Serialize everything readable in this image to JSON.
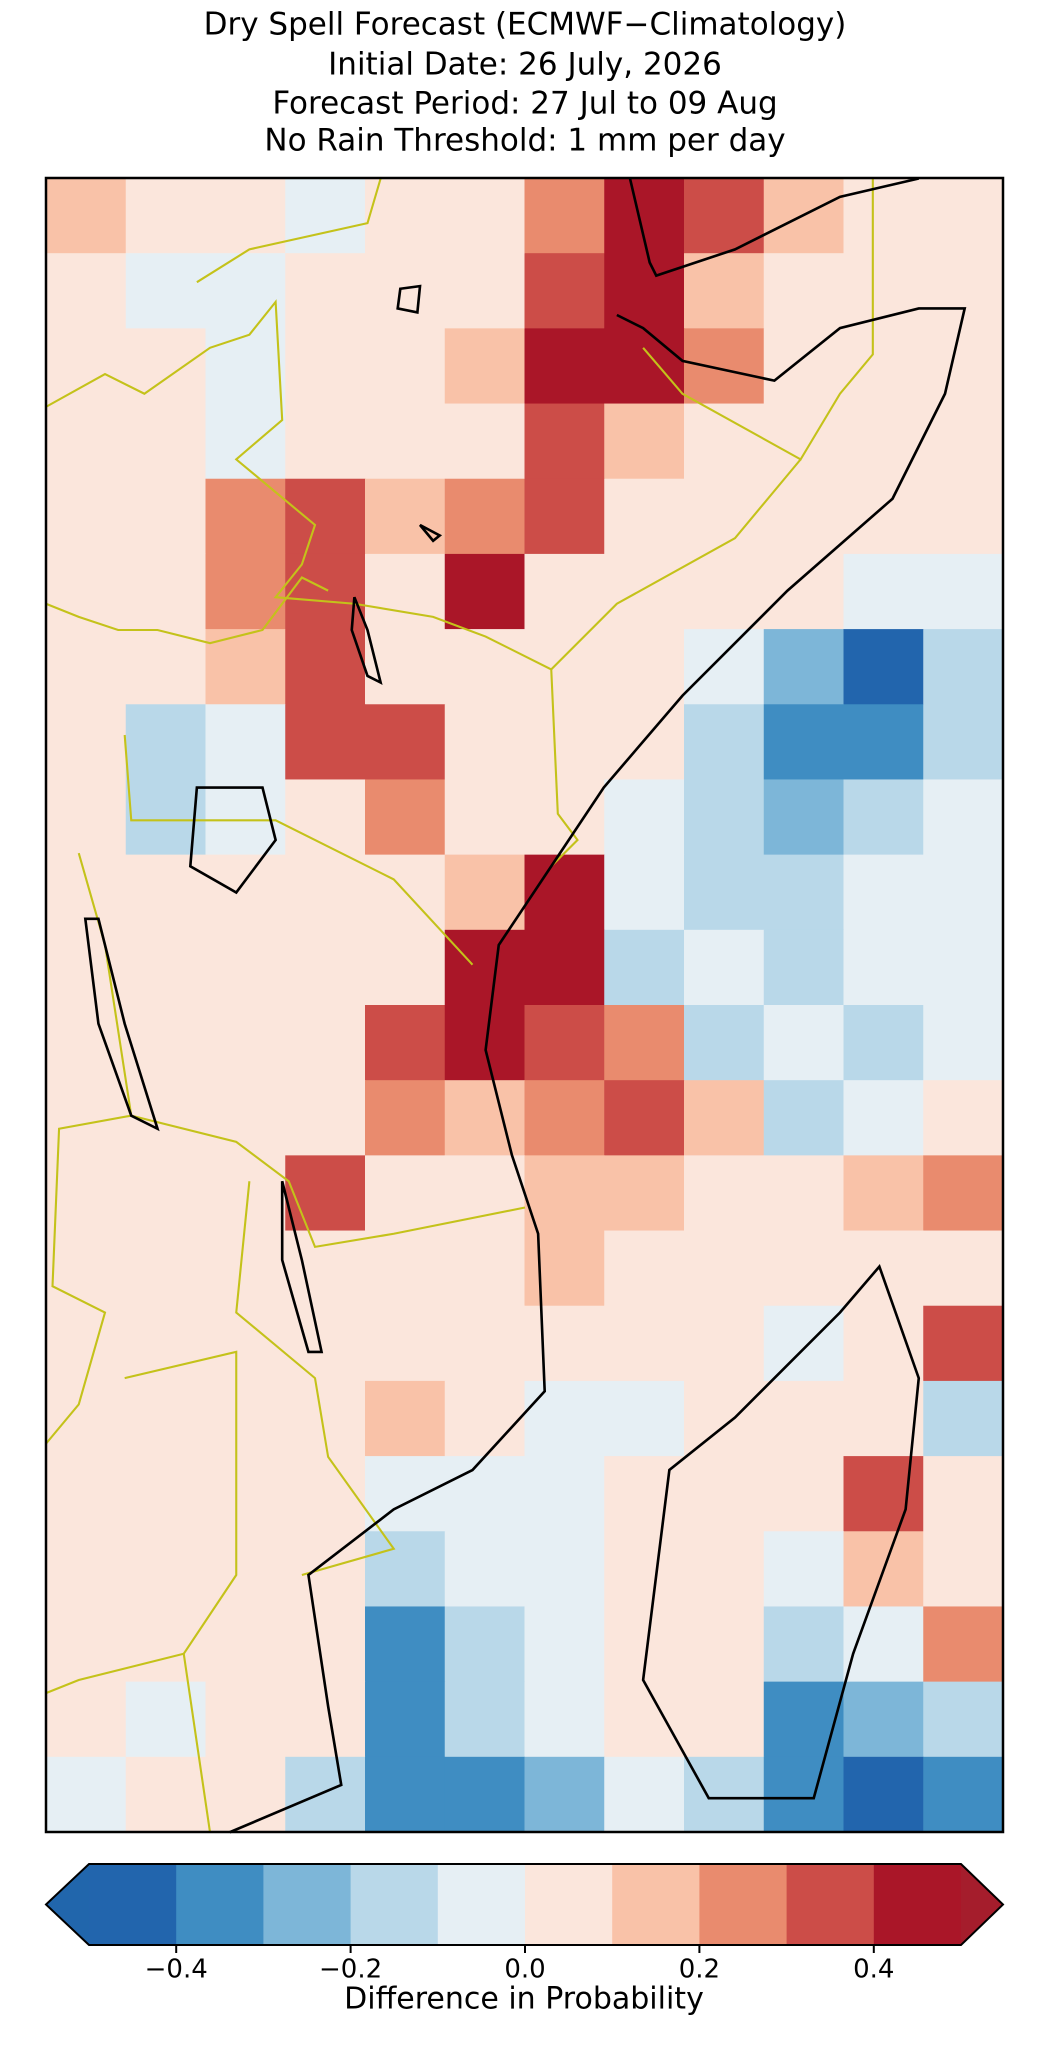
{
  "chart_data": {
    "type": "gridmap",
    "title_lines": [
      "Dry Spell Forecast (ECMWF−Climatology)",
      "Initial Date: 26 July, 2026",
      "Forecast Period: 27 Jul to 09 Aug",
      "No Rain Threshold: 1 mm per day"
    ],
    "colorbar": {
      "label": "Difference in Probability",
      "levels": [
        -0.5,
        -0.4,
        -0.3,
        -0.2,
        -0.1,
        0,
        0.1,
        0.2,
        0.3,
        0.4,
        0.5
      ],
      "colors": [
        "#2265ad",
        "#3f8dc2",
        "#7db6d8",
        "#b9d8e9",
        "#e6eff4",
        "#fbe6dc",
        "#f9c2a8",
        "#e98b6e",
        "#cc4d48",
        "#aa1628"
      ],
      "extend_colors": [
        "#2166ac",
        "#a51d2c"
      ],
      "ticks": [
        {
          "value": -0.4,
          "label": "−0.4"
        },
        {
          "value": -0.2,
          "label": "−0.2"
        },
        {
          "value": 0,
          "label": "0.0"
        },
        0.2,
        0.4
      ]
    },
    "grid": [
      [
        0.15,
        0.05,
        0.05,
        -0.05,
        0.05,
        0.05,
        0.25,
        0.45,
        0.35,
        0.15,
        0.05,
        0.05
      ],
      [
        0.05,
        -0.05,
        -0.05,
        0.05,
        0.05,
        0.05,
        0.35,
        0.45,
        0.15,
        0.05,
        0.05,
        0.05
      ],
      [
        0.05,
        0.05,
        -0.05,
        0.05,
        0.05,
        0.15,
        0.45,
        0.45,
        0.25,
        0.05,
        0.05,
        0.05
      ],
      [
        0.05,
        0.05,
        -0.05,
        0.05,
        0.05,
        0.05,
        0.35,
        0.15,
        0.05,
        0.05,
        0.05,
        0.05
      ],
      [
        0.05,
        0.05,
        0.25,
        0.35,
        0.15,
        0.25,
        0.35,
        0.05,
        0.05,
        0.05,
        0.05,
        0.05
      ],
      [
        0.05,
        0.05,
        0.25,
        0.35,
        0.05,
        0.45,
        0.05,
        0.05,
        0.05,
        0.05,
        -0.05,
        -0.05
      ],
      [
        0.05,
        0.05,
        0.15,
        0.35,
        0.05,
        0.05,
        0.05,
        0.05,
        -0.05,
        -0.25,
        -0.45,
        -0.15
      ],
      [
        0.05,
        -0.15,
        -0.05,
        0.35,
        0.35,
        0.05,
        0.05,
        0.05,
        -0.15,
        -0.35,
        -0.35,
        -0.15
      ],
      [
        0.05,
        -0.15,
        -0.05,
        0.05,
        0.25,
        0.05,
        0.05,
        -0.05,
        -0.15,
        -0.25,
        -0.15,
        -0.05
      ],
      [
        0.05,
        0.05,
        0.05,
        0.05,
        0.05,
        0.15,
        0.45,
        -0.05,
        -0.15,
        -0.15,
        -0.05,
        -0.05
      ],
      [
        0.05,
        0.05,
        0.05,
        0.05,
        0.05,
        0.45,
        0.45,
        -0.15,
        -0.05,
        -0.15,
        -0.05,
        -0.05
      ],
      [
        0.05,
        0.05,
        0.05,
        0.05,
        0.35,
        0.45,
        0.35,
        0.25,
        -0.15,
        -0.05,
        -0.15,
        -0.05
      ],
      [
        0.05,
        0.05,
        0.05,
        0.05,
        0.25,
        0.15,
        0.25,
        0.35,
        0.15,
        -0.15,
        -0.05,
        0.05
      ],
      [
        0.05,
        0.05,
        0.05,
        0.35,
        0.05,
        0.05,
        0.15,
        0.15,
        0.05,
        0.05,
        0.15,
        0.25
      ],
      [
        0.05,
        0.05,
        0.05,
        0.05,
        0.05,
        0.05,
        0.15,
        0.05,
        0.05,
        0.05,
        0.05,
        0.05
      ],
      [
        0.05,
        0.05,
        0.05,
        0.05,
        0.05,
        0.05,
        0.05,
        0.05,
        0.05,
        -0.05,
        0.05,
        0.35
      ],
      [
        0.05,
        0.05,
        0.05,
        0.05,
        0.15,
        0.05,
        -0.05,
        -0.05,
        0.05,
        0.05,
        0.05,
        -0.15
      ],
      [
        0.05,
        0.05,
        0.05,
        0.05,
        -0.05,
        -0.05,
        -0.05,
        0.05,
        0.05,
        0.05,
        0.35,
        0.05
      ],
      [
        0.05,
        0.05,
        0.05,
        0.05,
        -0.15,
        -0.05,
        -0.05,
        0.05,
        0.05,
        -0.05,
        0.15,
        0.05
      ],
      [
        0.05,
        0.05,
        0.05,
        0.05,
        -0.35,
        -0.15,
        -0.05,
        0.05,
        0.05,
        -0.15,
        -0.05,
        0.25
      ],
      [
        0.05,
        -0.05,
        0.05,
        0.05,
        -0.35,
        -0.15,
        -0.05,
        0.05,
        0.05,
        -0.35,
        -0.25,
        -0.15
      ],
      [
        -0.05,
        0.05,
        0.05,
        -0.15,
        -0.35,
        -0.35,
        -0.25,
        -0.05,
        -0.15,
        -0.35,
        -0.45,
        -0.35
      ]
    ]
  }
}
